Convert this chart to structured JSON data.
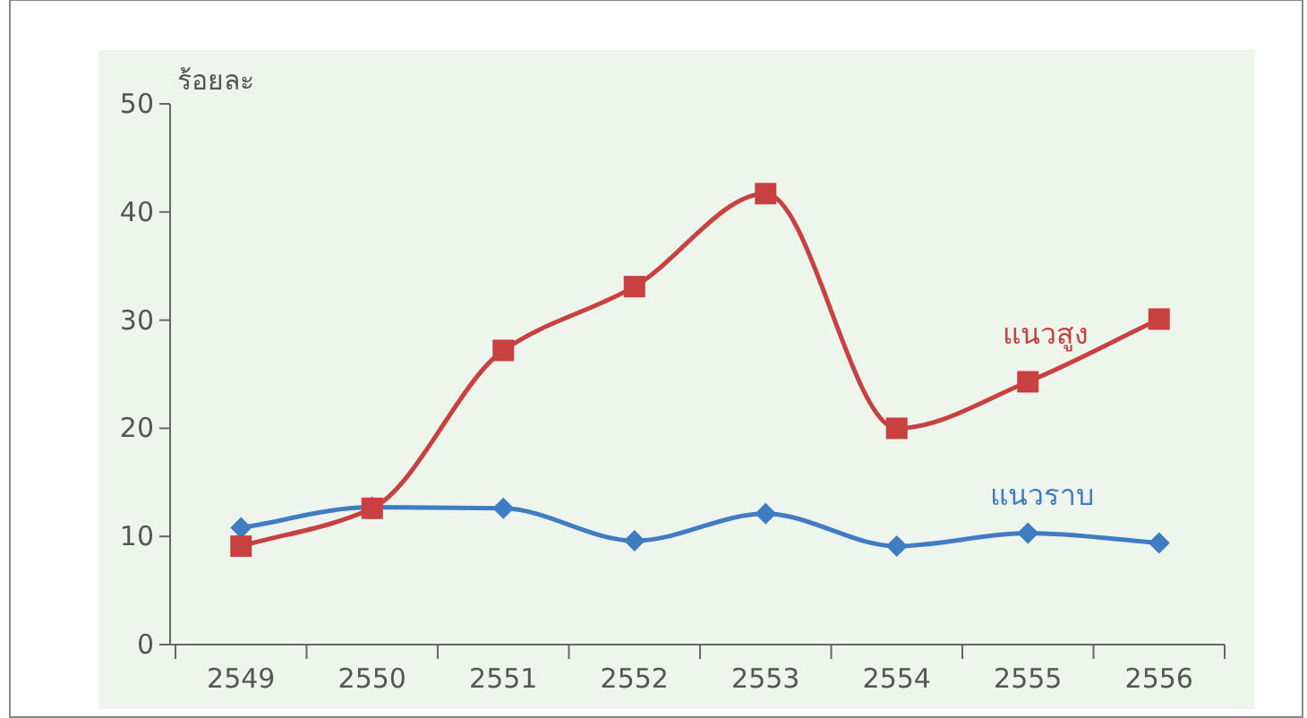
{
  "chart_data": {
    "type": "line",
    "ylabel": "ร้อยละ",
    "categories": [
      "2549",
      "2550",
      "2551",
      "2552",
      "2553",
      "2554",
      "2555",
      "2556"
    ],
    "ylim": [
      0,
      50
    ],
    "yticks": [
      0,
      10,
      20,
      30,
      40,
      50
    ],
    "series": [
      {
        "name": "แนวสูง",
        "color": "#c8403f",
        "marker": "square",
        "values": [
          9.1,
          12.6,
          27.2,
          33.1,
          41.7,
          20.0,
          24.3,
          30.1
        ]
      },
      {
        "name": "แนวราบ",
        "color": "#3f7cc4",
        "marker": "diamond",
        "values": [
          10.8,
          12.7,
          12.6,
          9.6,
          12.1,
          9.1,
          10.3,
          9.4
        ]
      }
    ]
  }
}
